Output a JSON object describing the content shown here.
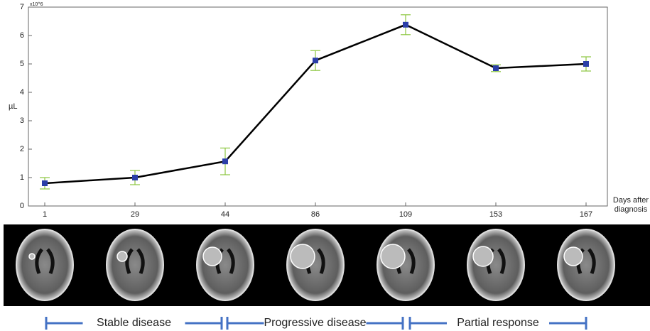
{
  "chart_data": {
    "type": "line",
    "y_label": "µL",
    "y_multiplier": "x10^6",
    "x_label": "Days after diagnosis",
    "categories": [
      "1",
      "29",
      "44",
      "86",
      "109",
      "153",
      "167"
    ],
    "values": [
      0.8,
      1.0,
      1.57,
      5.12,
      6.38,
      4.85,
      5.0
    ],
    "errors": [
      0.2,
      0.25,
      0.47,
      0.35,
      0.35,
      0.12,
      0.25
    ],
    "color": "#000000",
    "marker_color": "#2b3fa8",
    "error_color": "#8cc63f",
    "ylim": [
      0,
      7
    ],
    "yticks": [
      0,
      1,
      2,
      3,
      4,
      5,
      6,
      7
    ]
  },
  "phases": [
    "Stable disease",
    "Progressive disease",
    "Partial response"
  ]
}
